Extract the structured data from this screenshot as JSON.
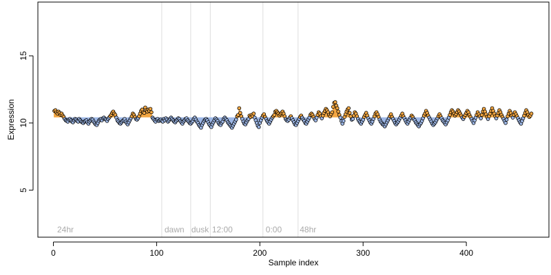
{
  "chart_data": {
    "type": "scatter",
    "title": "",
    "xlabel": "Sample index",
    "ylabel": "Expression",
    "xlim": [
      -15,
      480
    ],
    "ylim": [
      1.5,
      19
    ],
    "xticks": [
      0,
      100,
      200,
      300,
      400
    ],
    "xtick_labels": [
      "0",
      "100",
      "200",
      "300",
      "400"
    ],
    "yticks": [
      5,
      10,
      15
    ],
    "ytick_labels": [
      "5",
      "10",
      "15"
    ],
    "grid": false,
    "legend": "none",
    "baseline": 10.42,
    "vlines": [
      105,
      133,
      152,
      203,
      237
    ],
    "annotations": [
      {
        "x": 3,
        "text": "24hr"
      },
      {
        "x": 107,
        "text": "dawn"
      },
      {
        "x": 133,
        "text": "dusk"
      },
      {
        "x": 153,
        "text": "12:00"
      },
      {
        "x": 205,
        "text": "0:00"
      },
      {
        "x": 238,
        "text": "48hr"
      }
    ],
    "n_points": 460,
    "colors": {
      "above": "#f4a742",
      "below": "#9db7e6",
      "outline": "#000000",
      "axis": "#000000",
      "vline": "#dddddd",
      "annotation": "#aaaaaa"
    },
    "series": [
      {
        "values": [
          10.9,
          10.95,
          10.8,
          10.7,
          10.85,
          10.75,
          10.6,
          10.7,
          10.55,
          10.45,
          10.3,
          10.2,
          10.15,
          10.1,
          10.25,
          10.3,
          10.2,
          10.1,
          10.05,
          10.2,
          10.3,
          10.25,
          10.15,
          10.1,
          10.3,
          10.2,
          10.1,
          10.05,
          10.0,
          10.1,
          10.15,
          10.2,
          10.05,
          9.95,
          10.1,
          10.2,
          10.3,
          10.25,
          10.1,
          10.0,
          9.9,
          9.85,
          10.0,
          10.15,
          10.25,
          10.3,
          10.2,
          10.35,
          10.4,
          10.3,
          10.25,
          10.15,
          10.3,
          10.4,
          10.5,
          10.6,
          10.75,
          10.85,
          10.7,
          10.6,
          10.4,
          10.2,
          10.1,
          10.0,
          9.95,
          10.05,
          10.15,
          10.2,
          10.3,
          10.1,
          10.0,
          9.9,
          10.05,
          10.2,
          10.35,
          10.5,
          10.7,
          10.6,
          10.45,
          10.3,
          10.25,
          10.35,
          10.5,
          10.7,
          10.9,
          11.0,
          10.8,
          10.75,
          11.15,
          10.95,
          10.85,
          11.0,
          10.9,
          11.05,
          10.8,
          10.4,
          10.3,
          10.2,
          10.1,
          10.25,
          10.3,
          10.15,
          10.2,
          10.25,
          10.15,
          10.1,
          10.3,
          10.2,
          10.35,
          10.25,
          10.1,
          10.2,
          10.3,
          10.4,
          10.3,
          10.2,
          10.1,
          10.05,
          10.15,
          10.25,
          10.35,
          10.3,
          10.15,
          10.05,
          9.95,
          10.1,
          10.2,
          10.3,
          10.35,
          10.2,
          10.1,
          10.0,
          9.95,
          10.05,
          10.15,
          10.3,
          10.4,
          10.25,
          10.1,
          10.0,
          9.85,
          9.75,
          9.65,
          9.85,
          10.0,
          10.15,
          10.25,
          10.3,
          10.2,
          10.05,
          9.9,
          9.8,
          9.7,
          9.9,
          10.05,
          10.2,
          10.35,
          10.25,
          10.15,
          10.0,
          9.9,
          9.85,
          10.0,
          10.1,
          10.3,
          10.4,
          10.3,
          10.2,
          10.05,
          9.95,
          9.85,
          9.75,
          9.65,
          9.8,
          9.95,
          10.1,
          10.25,
          10.5,
          10.6,
          11.1,
          10.75,
          10.5,
          10.3,
          10.1,
          9.95,
          9.9,
          10.05,
          10.2,
          10.3,
          10.55,
          10.45,
          10.6,
          10.5,
          10.7,
          10.4,
          10.2,
          10.0,
          9.8,
          9.7,
          10.0,
          10.2,
          10.4,
          10.55,
          10.65,
          10.45,
          10.3,
          10.15,
          10.05,
          9.95,
          10.1,
          10.25,
          10.4,
          10.5,
          10.6,
          10.85,
          10.9,
          10.8,
          10.7,
          10.55,
          10.65,
          10.75,
          10.85,
          10.7,
          10.5,
          10.3,
          10.2,
          10.15,
          10.25,
          10.4,
          10.5,
          10.35,
          10.2,
          10.05,
          9.9,
          9.85,
          10.0,
          10.15,
          10.3,
          10.45,
          10.55,
          10.4,
          10.25,
          10.15,
          10.0,
          9.95,
          10.1,
          10.25,
          10.4,
          10.6,
          10.7,
          10.6,
          10.45,
          10.3,
          10.2,
          10.4,
          10.6,
          10.8,
          10.7,
          10.5,
          10.35,
          10.55,
          10.75,
          10.9,
          11.05,
          10.95,
          10.8,
          10.6,
          10.5,
          10.65,
          10.8,
          11.2,
          11.5,
          11.55,
          11.3,
          11.1,
          10.85,
          10.6,
          10.4,
          10.15,
          9.95,
          10.15,
          10.45,
          10.65,
          10.85,
          11.0,
          11.1,
          10.75,
          10.5,
          10.25,
          10.3,
          10.55,
          10.8,
          10.7,
          10.5,
          10.3,
          10.15,
          10.05,
          9.95,
          10.1,
          10.25,
          10.45,
          10.6,
          10.75,
          10.55,
          10.35,
          10.2,
          10.05,
          9.95,
          10.1,
          10.3,
          10.5,
          10.7,
          10.8,
          10.65,
          10.45,
          10.25,
          10.1,
          10.0,
          9.9,
          9.85,
          9.75,
          9.9,
          10.05,
          10.2,
          10.35,
          10.5,
          10.65,
          10.45,
          10.3,
          10.15,
          10.0,
          9.9,
          10.0,
          10.1,
          10.25,
          10.4,
          10.55,
          10.7,
          10.5,
          10.35,
          10.2,
          10.05,
          9.95,
          10.1,
          10.25,
          10.4,
          10.55,
          10.45,
          10.3,
          10.2,
          10.05,
          9.95,
          9.85,
          9.75,
          9.9,
          10.0,
          10.15,
          10.35,
          10.55,
          10.7,
          10.9,
          10.75,
          10.55,
          10.4,
          10.25,
          10.1,
          9.95,
          9.85,
          9.95,
          10.05,
          10.2,
          10.35,
          10.5,
          10.65,
          10.5,
          10.35,
          10.2,
          10.1,
          10.0,
          9.9,
          10.05,
          10.2,
          10.4,
          10.6,
          10.8,
          10.95,
          10.85,
          10.7,
          10.55,
          10.65,
          10.8,
          10.95,
          10.85,
          10.7,
          10.55,
          10.4,
          10.3,
          10.45,
          10.6,
          10.75,
          10.9,
          10.8,
          10.6,
          10.45,
          10.3,
          10.15,
          10.0,
          10.2,
          10.4,
          10.6,
          10.8,
          10.65,
          10.5,
          10.35,
          10.6,
          10.85,
          11.05,
          10.85,
          10.65,
          10.45,
          10.3,
          10.5,
          10.7,
          10.9,
          11.1,
          10.9,
          10.7,
          10.5,
          10.35,
          10.55,
          10.75,
          10.95,
          10.8,
          10.6,
          10.45,
          10.3,
          10.15,
          10.0,
          10.25,
          10.5,
          10.7,
          10.9,
          10.75,
          10.55,
          10.4,
          10.6,
          10.8,
          10.65,
          10.5,
          10.35,
          10.2,
          10.05,
          9.95,
          10.15,
          10.35,
          10.55,
          10.75,
          10.95,
          10.8,
          10.6,
          10.45,
          10.55,
          10.7
        ]
      }
    ]
  }
}
